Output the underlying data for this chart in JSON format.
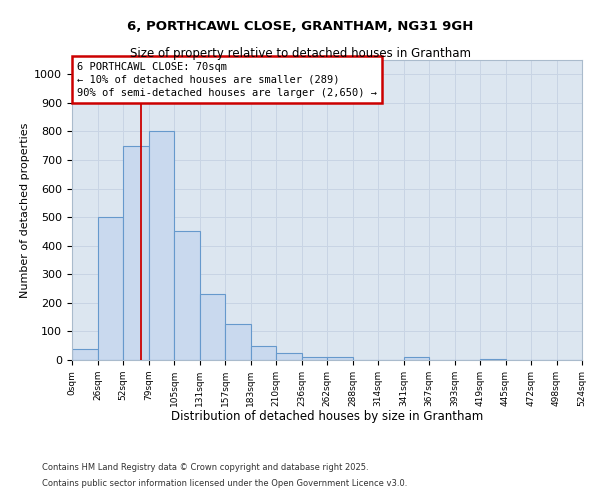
{
  "title": "6, PORTHCAWL CLOSE, GRANTHAM, NG31 9GH",
  "subtitle": "Size of property relative to detached houses in Grantham",
  "xlabel": "Distribution of detached houses by size in Grantham",
  "ylabel": "Number of detached properties",
  "footnote1": "Contains HM Land Registry data © Crown copyright and database right 2025.",
  "footnote2": "Contains public sector information licensed under the Open Government Licence v3.0.",
  "bin_labels": [
    "0sqm",
    "26sqm",
    "52sqm",
    "79sqm",
    "105sqm",
    "131sqm",
    "157sqm",
    "183sqm",
    "210sqm",
    "236sqm",
    "262sqm",
    "288sqm",
    "314sqm",
    "341sqm",
    "367sqm",
    "393sqm",
    "419sqm",
    "445sqm",
    "472sqm",
    "498sqm",
    "524sqm"
  ],
  "bar_values": [
    40,
    500,
    750,
    800,
    450,
    230,
    125,
    50,
    25,
    10,
    10,
    0,
    0,
    10,
    0,
    0,
    5,
    0,
    0,
    0
  ],
  "bar_color": "#c9d9ee",
  "bar_edge_color": "#6699cc",
  "grid_color": "#c8d4e4",
  "background_color": "#dce6f0",
  "plot_bg_color": "#dce6f0",
  "red_line_x": 2.69,
  "annotation_text": "6 PORTHCAWL CLOSE: 70sqm\n← 10% of detached houses are smaller (289)\n90% of semi-detached houses are larger (2,650) →",
  "annotation_box_color": "#ffffff",
  "annotation_edge_color": "#cc0000",
  "ylim": [
    0,
    1050
  ],
  "yticks": [
    0,
    100,
    200,
    300,
    400,
    500,
    600,
    700,
    800,
    900,
    1000
  ]
}
